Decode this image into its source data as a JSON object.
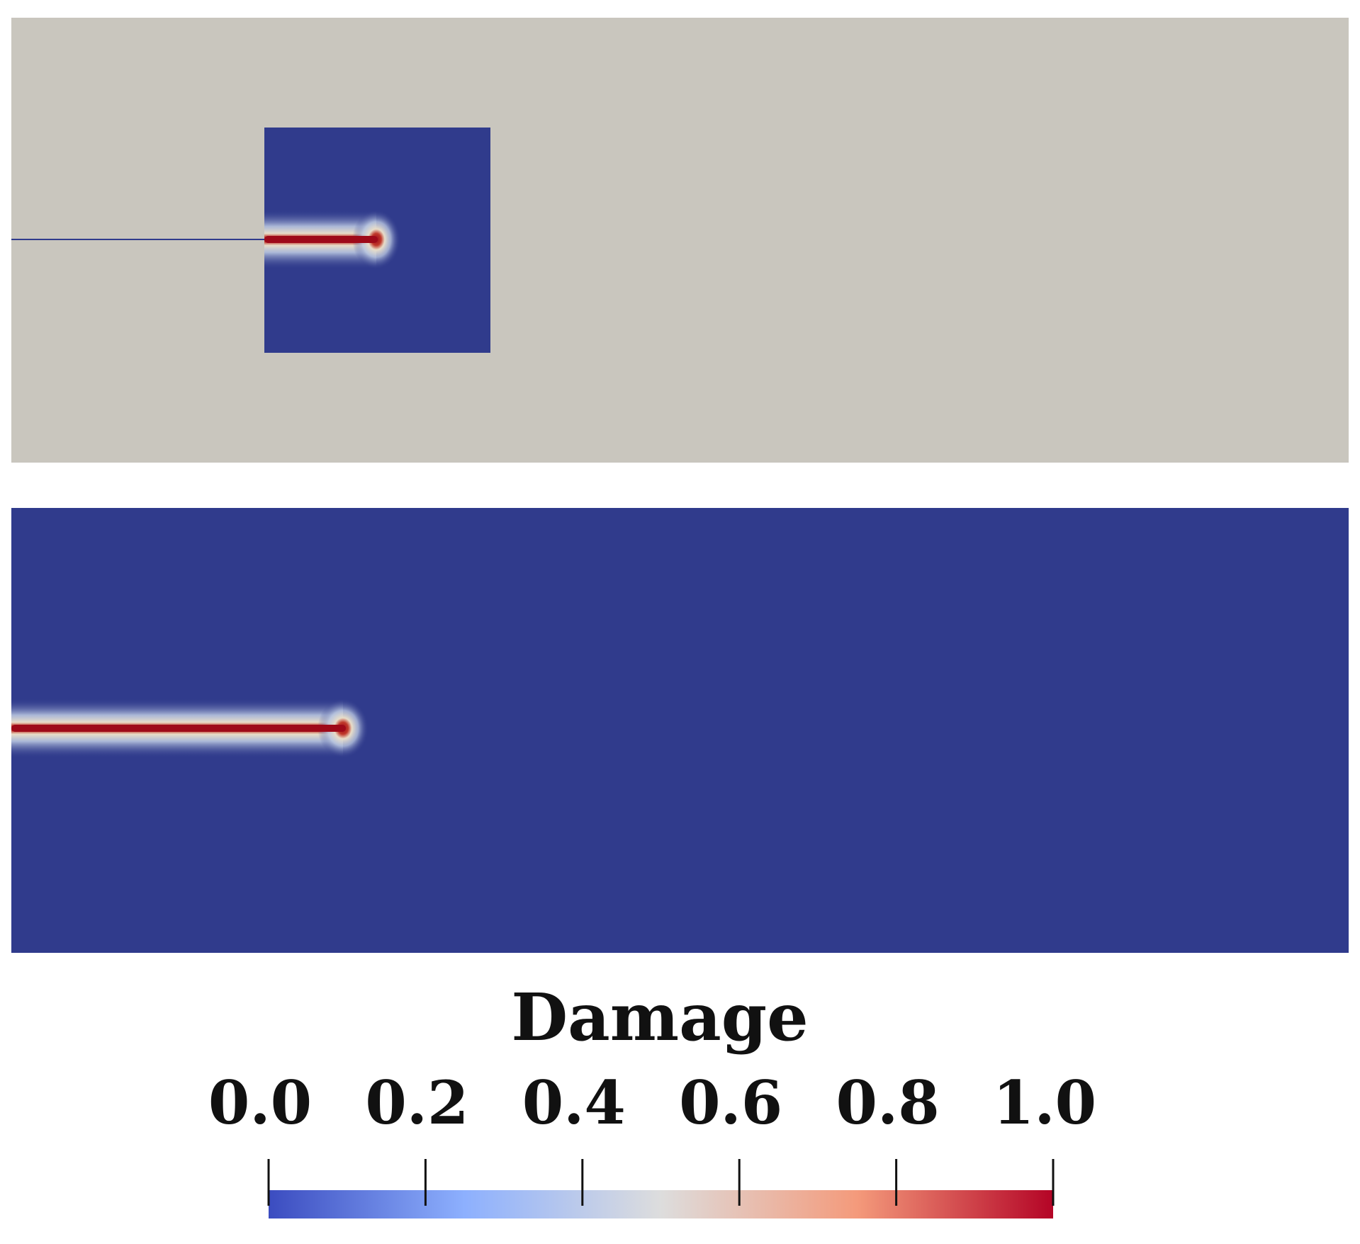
{
  "colorbar": {
    "title": "Damage",
    "ticks": [
      {
        "value": 0.0,
        "label": "0.0"
      },
      {
        "value": 0.2,
        "label": "0.2"
      },
      {
        "value": 0.4,
        "label": "0.4"
      },
      {
        "value": 0.6,
        "label": "0.6"
      },
      {
        "value": 0.8,
        "label": "0.8"
      },
      {
        "value": 1.0,
        "label": "1.0"
      }
    ],
    "range": [
      0.0,
      1.0
    ],
    "colormap": [
      "#3b4cc0",
      "#8db0fe",
      "#dddddd",
      "#f49a7b",
      "#b40426"
    ]
  },
  "panels": {
    "top": {
      "background_color": "#c9c6be",
      "subdomain_color": "#303b8c"
    },
    "bottom": {
      "background_color": "#303b8c"
    },
    "crack_color": "#a50a1a"
  }
}
